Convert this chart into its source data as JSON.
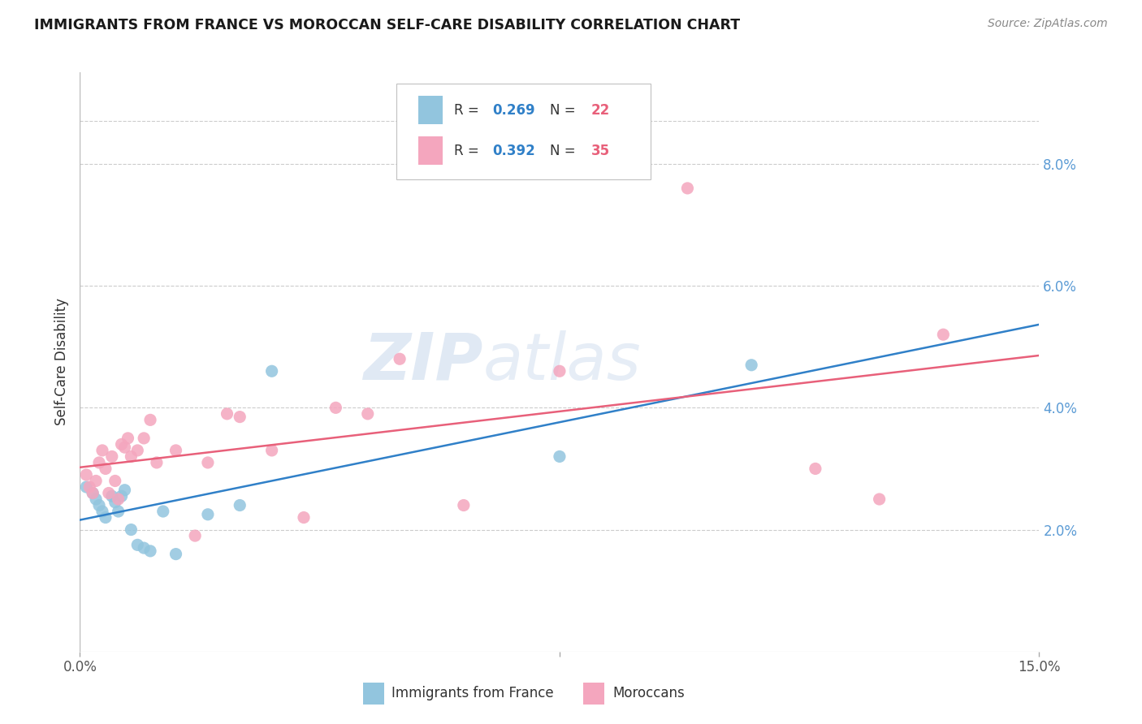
{
  "title": "IMMIGRANTS FROM FRANCE VS MOROCCAN SELF-CARE DISABILITY CORRELATION CHART",
  "source": "Source: ZipAtlas.com",
  "ylabel": "Self-Care Disability",
  "right_ytick_values": [
    2.0,
    4.0,
    6.0,
    8.0
  ],
  "xlim": [
    0.0,
    15.0
  ],
  "ylim": [
    0.0,
    9.5
  ],
  "legend_blue_r": "0.269",
  "legend_blue_n": "22",
  "legend_pink_r": "0.392",
  "legend_pink_n": "35",
  "legend_blue_label": "Immigrants from France",
  "legend_pink_label": "Moroccans",
  "blue_color": "#92c5de",
  "pink_color": "#f4a6be",
  "blue_line_color": "#3080c8",
  "pink_line_color": "#e8607a",
  "r_value_color": "#3080c8",
  "n_value_color": "#e8607a",
  "blue_x": [
    0.1,
    0.2,
    0.25,
    0.3,
    0.35,
    0.4,
    0.5,
    0.55,
    0.6,
    0.65,
    0.7,
    0.8,
    0.9,
    1.0,
    1.1,
    1.3,
    1.5,
    2.0,
    2.5,
    3.0,
    7.5,
    10.5
  ],
  "blue_y": [
    2.7,
    2.6,
    2.5,
    2.4,
    2.3,
    2.2,
    2.55,
    2.45,
    2.3,
    2.55,
    2.65,
    2.0,
    1.75,
    1.7,
    1.65,
    2.3,
    1.6,
    2.25,
    2.4,
    4.6,
    3.2,
    4.7
  ],
  "pink_x": [
    0.1,
    0.15,
    0.2,
    0.25,
    0.3,
    0.35,
    0.4,
    0.45,
    0.5,
    0.55,
    0.6,
    0.65,
    0.7,
    0.75,
    0.8,
    0.9,
    1.0,
    1.1,
    1.2,
    1.5,
    1.8,
    2.0,
    2.3,
    2.5,
    3.0,
    3.5,
    4.0,
    4.5,
    5.0,
    6.0,
    7.5,
    9.5,
    11.5,
    12.5,
    13.5
  ],
  "pink_y": [
    2.9,
    2.7,
    2.6,
    2.8,
    3.1,
    3.3,
    3.0,
    2.6,
    3.2,
    2.8,
    2.5,
    3.4,
    3.35,
    3.5,
    3.2,
    3.3,
    3.5,
    3.8,
    3.1,
    3.3,
    1.9,
    3.1,
    3.9,
    3.85,
    3.3,
    2.2,
    4.0,
    3.9,
    4.8,
    2.4,
    4.6,
    7.6,
    3.0,
    2.5,
    5.2
  ],
  "watermark": "ZIPatlas",
  "background_color": "#ffffff",
  "grid_color": "#cccccc",
  "top_dashed_y": 8.7
}
